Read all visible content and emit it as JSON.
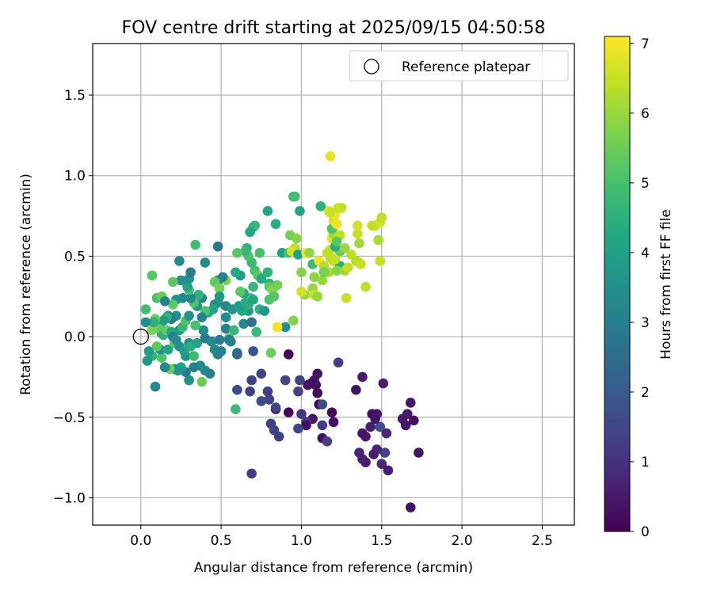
{
  "chart_data": {
    "type": "scatter",
    "title": "FOV centre drift starting at 2025/09/15 04:50:58",
    "xlabel": "Angular distance from reference (arcmin)",
    "ylabel": "Rotation from reference (arcmin)",
    "xlim": [
      -0.3,
      2.7
    ],
    "ylim": [
      -1.17,
      1.82
    ],
    "x_ticks": [
      0.0,
      0.5,
      1.0,
      1.5,
      2.0,
      2.5
    ],
    "x_tick_labels": [
      "0.0",
      "0.5",
      "1.0",
      "1.5",
      "2.0",
      "2.5"
    ],
    "y_ticks": [
      -1.0,
      -0.5,
      0.0,
      0.5,
      1.0,
      1.5
    ],
    "y_tick_labels": [
      "−1.0",
      "−0.5",
      "0.0",
      "0.5",
      "1.0",
      "1.5"
    ],
    "grid": true,
    "legend": {
      "position": "top-right",
      "entries": [
        {
          "label": "Reference platepar",
          "marker": "open-circle"
        }
      ]
    },
    "reference_point": {
      "x": 0.0,
      "y": 0.0,
      "label": "Reference platepar"
    },
    "colorbar": {
      "label": "Hours from first FF file",
      "colormap": "viridis",
      "range": [
        0,
        7.1
      ],
      "ticks": [
        0,
        1,
        2,
        3,
        4,
        5,
        6,
        7
      ],
      "tick_labels": [
        "0",
        "1",
        "2",
        "3",
        "4",
        "5",
        "6",
        "7"
      ]
    },
    "points": [
      [
        1.68,
        -1.06,
        0.3
      ],
      [
        1.73,
        -0.72,
        0.4
      ],
      [
        1.54,
        -0.83,
        0.6
      ],
      [
        1.5,
        -0.79,
        0.8
      ],
      [
        1.4,
        -0.78,
        0.5
      ],
      [
        1.38,
        -0.76,
        0.6
      ],
      [
        1.36,
        -0.72,
        0.8
      ],
      [
        1.45,
        -0.73,
        0.5
      ],
      [
        1.52,
        -0.72,
        1.4
      ],
      [
        1.47,
        -0.7,
        0.7
      ],
      [
        1.4,
        -0.62,
        0.5
      ],
      [
        1.38,
        -0.6,
        0.4
      ],
      [
        1.43,
        -0.56,
        0.6
      ],
      [
        1.49,
        -0.56,
        1.6
      ],
      [
        1.53,
        -0.6,
        0.8
      ],
      [
        1.47,
        -0.48,
        0.5
      ],
      [
        1.44,
        -0.48,
        0.3
      ],
      [
        1.46,
        -0.51,
        0.4
      ],
      [
        1.65,
        -0.55,
        0.4
      ],
      [
        1.66,
        -0.48,
        0.5
      ],
      [
        1.68,
        -0.41,
        0.4
      ],
      [
        1.7,
        -0.52,
        0.3
      ],
      [
        1.63,
        -0.51,
        0.5
      ],
      [
        1.51,
        -0.29,
        0.6
      ],
      [
        1.38,
        -0.25,
        0.5
      ],
      [
        1.34,
        -0.33,
        0.3
      ],
      [
        1.23,
        -0.16,
        1.3
      ],
      [
        1.2,
        -0.53,
        0.3
      ],
      [
        1.19,
        -0.47,
        0.2
      ],
      [
        1.13,
        -0.63,
        0.3
      ],
      [
        1.16,
        -0.65,
        1.3
      ],
      [
        1.11,
        -0.42,
        0.1
      ],
      [
        1.1,
        -0.35,
        0.2
      ],
      [
        1.09,
        -0.3,
        0.3
      ],
      [
        1.08,
        -0.27,
        0.5
      ],
      [
        1.1,
        -0.23,
        0.4
      ],
      [
        1.06,
        -0.29,
        0.2
      ],
      [
        1.04,
        -0.3,
        0.3
      ],
      [
        1.07,
        -0.51,
        0.4
      ],
      [
        1.03,
        -0.53,
        1.2
      ],
      [
        1.0,
        -0.48,
        1.2
      ],
      [
        1.03,
        -0.55,
        0.2
      ],
      [
        1.13,
        -0.55,
        1.2
      ],
      [
        1.13,
        -0.42,
        1.6
      ],
      [
        0.98,
        -0.57,
        1.5
      ],
      [
        0.98,
        -0.34,
        1.4
      ],
      [
        0.99,
        -0.27,
        1.4
      ],
      [
        0.9,
        -0.27,
        1.5
      ],
      [
        0.92,
        -0.11,
        0.1
      ],
      [
        0.92,
        -0.47,
        0.1
      ],
      [
        0.84,
        -0.45,
        0.2
      ],
      [
        0.84,
        -0.44,
        1.5
      ],
      [
        0.81,
        -0.54,
        1.4
      ],
      [
        0.83,
        -0.58,
        1.5
      ],
      [
        0.86,
        -0.62,
        1.3
      ],
      [
        0.8,
        -0.39,
        1.4
      ],
      [
        0.79,
        -0.34,
        1.3
      ],
      [
        0.75,
        -0.4,
        1.6
      ],
      [
        0.75,
        -0.23,
        1.5
      ],
      [
        0.69,
        -0.27,
        1.4
      ],
      [
        0.7,
        -0.09,
        1.8
      ],
      [
        0.68,
        -0.34,
        1.3
      ],
      [
        0.6,
        -0.33,
        1.6
      ],
      [
        0.69,
        -0.85,
        1.3
      ],
      [
        0.59,
        -0.45,
        4.8
      ],
      [
        0.81,
        -0.1,
        5.5
      ],
      [
        0.6,
        -0.1,
        3.0
      ],
      [
        0.6,
        -0.11,
        2.4
      ],
      [
        0.56,
        -0.03,
        3.1
      ],
      [
        0.55,
        -0.01,
        5.1
      ],
      [
        0.5,
        -0.09,
        3.2
      ],
      [
        0.48,
        -0.11,
        3.0
      ],
      [
        0.46,
        -0.08,
        3.2
      ],
      [
        0.43,
        -0.23,
        3.1
      ],
      [
        0.4,
        -0.21,
        3.2
      ],
      [
        0.38,
        -0.28,
        5.5
      ],
      [
        0.37,
        -0.18,
        3.4
      ],
      [
        0.33,
        -0.19,
        3.0
      ],
      [
        0.3,
        -0.27,
        3.5
      ],
      [
        0.28,
        -0.22,
        3.0
      ],
      [
        0.28,
        -0.12,
        3.6
      ],
      [
        0.25,
        -0.19,
        4.0
      ],
      [
        0.23,
        -0.21,
        3.8
      ],
      [
        0.21,
        -0.2,
        3.6
      ],
      [
        0.18,
        -0.2,
        5.5
      ],
      [
        0.15,
        -0.19,
        3.3
      ],
      [
        0.13,
        -0.13,
        5.1
      ],
      [
        0.12,
        -0.08,
        3.5
      ],
      [
        0.09,
        -0.31,
        3.3
      ],
      [
        0.07,
        -0.12,
        4.6
      ],
      [
        0.04,
        -0.15,
        3.8
      ],
      [
        0.05,
        -0.09,
        3.9
      ],
      [
        0.1,
        -0.06,
        5.3
      ],
      [
        0.17,
        -0.08,
        4.2
      ],
      [
        0.21,
        -0.04,
        5.2
      ],
      [
        0.24,
        -0.06,
        3.6
      ],
      [
        0.27,
        -0.09,
        4.0
      ],
      [
        0.3,
        -0.04,
        3.4
      ],
      [
        0.31,
        -0.06,
        4.4
      ],
      [
        0.33,
        -0.12,
        4.8
      ],
      [
        0.35,
        -0.04,
        4.1
      ],
      [
        0.39,
        0.04,
        3.5
      ],
      [
        0.4,
        -0.01,
        3.0
      ],
      [
        0.44,
        -0.03,
        3.3
      ],
      [
        0.49,
        -0.02,
        3.0
      ],
      [
        0.53,
        0.05,
        3.1
      ],
      [
        0.55,
        -0.02,
        3.1
      ],
      [
        0.58,
        0.04,
        4.7
      ],
      [
        0.64,
        0.08,
        3.3
      ],
      [
        0.69,
        0.09,
        2.6
      ],
      [
        0.72,
        0.03,
        4.8
      ],
      [
        0.67,
        0.16,
        3.8
      ],
      [
        0.63,
        0.16,
        4.3
      ],
      [
        0.67,
        0.2,
        4.6
      ],
      [
        0.68,
        0.24,
        4.9
      ],
      [
        0.64,
        0.27,
        4.2
      ],
      [
        0.7,
        0.31,
        4.7
      ],
      [
        0.62,
        0.38,
        3.8
      ],
      [
        0.59,
        0.4,
        4.3
      ],
      [
        0.71,
        0.41,
        5.0
      ],
      [
        0.73,
        0.38,
        5.3
      ],
      [
        0.75,
        0.36,
        4.3
      ],
      [
        0.69,
        0.46,
        4.7
      ],
      [
        0.66,
        0.55,
        4.5
      ],
      [
        0.67,
        0.5,
        5.1
      ],
      [
        0.74,
        0.52,
        5.0
      ],
      [
        0.79,
        0.4,
        4.5
      ],
      [
        0.8,
        0.33,
        4.6
      ],
      [
        0.8,
        0.31,
        5.3
      ],
      [
        0.82,
        0.29,
        5.8
      ],
      [
        0.83,
        0.25,
        5.2
      ],
      [
        0.85,
        0.32,
        5.6
      ],
      [
        0.88,
        0.52,
        4.0
      ],
      [
        0.92,
        0.52,
        5.0
      ],
      [
        0.93,
        0.63,
        5.6
      ],
      [
        0.97,
        0.61,
        5.8
      ],
      [
        0.96,
        0.55,
        6.4
      ],
      [
        0.94,
        0.53,
        6.6
      ],
      [
        0.98,
        0.51,
        4.1
      ],
      [
        1.0,
        0.4,
        5.8
      ],
      [
        1.02,
        0.26,
        6.0
      ],
      [
        1.03,
        0.52,
        7.0
      ],
      [
        1.05,
        0.52,
        5.9
      ],
      [
        1.07,
        0.45,
        4.8
      ],
      [
        1.08,
        0.37,
        5.9
      ],
      [
        1.07,
        0.3,
        6.0
      ],
      [
        1.08,
        0.26,
        6.5
      ],
      [
        1.1,
        0.25,
        6.0
      ],
      [
        1.13,
        0.35,
        6.0
      ],
      [
        1.11,
        0.47,
        7.0
      ],
      [
        1.14,
        0.44,
        6.3
      ],
      [
        1.17,
        0.4,
        6.2
      ],
      [
        1.18,
        0.49,
        6.3
      ],
      [
        1.2,
        0.47,
        6.4
      ],
      [
        1.24,
        0.44,
        4.4
      ],
      [
        1.24,
        0.53,
        5.4
      ],
      [
        1.22,
        0.41,
        5.8
      ],
      [
        1.21,
        0.48,
        6.5
      ],
      [
        1.19,
        0.61,
        6.8
      ],
      [
        1.2,
        0.64,
        6.1
      ],
      [
        1.19,
        0.67,
        5.1
      ],
      [
        1.2,
        0.72,
        6.7
      ],
      [
        1.21,
        0.76,
        6.9
      ],
      [
        1.17,
        0.78,
        6.8
      ],
      [
        1.22,
        0.7,
        6.9
      ],
      [
        1.25,
        0.8,
        6.4
      ],
      [
        1.23,
        0.8,
        6.5
      ],
      [
        1.24,
        0.63,
        6.4
      ],
      [
        1.18,
        0.54,
        6.4
      ],
      [
        1.27,
        0.55,
        6.0
      ],
      [
        1.27,
        0.41,
        6.1
      ],
      [
        1.31,
        0.51,
        6.4
      ],
      [
        1.29,
        0.43,
        6.5
      ],
      [
        1.34,
        0.47,
        6.3
      ],
      [
        1.36,
        0.46,
        6.3
      ],
      [
        1.36,
        0.58,
        6.1
      ],
      [
        1.35,
        0.64,
        6.5
      ],
      [
        1.35,
        0.69,
        6.6
      ],
      [
        1.37,
        0.45,
        6.5
      ],
      [
        1.4,
        0.31,
        6.4
      ],
      [
        1.44,
        0.69,
        6.5
      ],
      [
        1.46,
        0.69,
        6.4
      ],
      [
        1.48,
        0.6,
        6.2
      ],
      [
        1.49,
        0.71,
        6.6
      ],
      [
        1.5,
        0.74,
        6.4
      ],
      [
        1.49,
        0.47,
        6.5
      ],
      [
        1.28,
        0.24,
        6.5
      ],
      [
        1.18,
        1.12,
        6.8
      ],
      [
        1.12,
        0.81,
        4.5
      ],
      [
        1.18,
        0.77,
        6.5
      ],
      [
        1.21,
        0.56,
        4.3
      ],
      [
        1.22,
        0.59,
        5.2
      ],
      [
        1.14,
        0.4,
        5.6
      ],
      [
        1.16,
        0.52,
        6.4
      ],
      [
        1.0,
        0.28,
        6.6
      ],
      [
        0.99,
        0.78,
        4.1
      ],
      [
        0.95,
        0.87,
        4.8
      ],
      [
        0.96,
        0.87,
        4.9
      ],
      [
        0.95,
        0.1,
        5.8
      ],
      [
        0.9,
        0.06,
        3.5
      ],
      [
        0.85,
        0.06,
        7.0
      ],
      [
        0.84,
        0.7,
        4.4
      ],
      [
        0.79,
        0.78,
        4.2
      ],
      [
        0.7,
        0.68,
        4.5
      ],
      [
        0.71,
        0.69,
        4.7
      ],
      [
        0.68,
        0.65,
        4.2
      ],
      [
        0.65,
        0.53,
        4.7
      ],
      [
        0.6,
        0.52,
        5.2
      ],
      [
        0.62,
        0.28,
        5.2
      ],
      [
        0.53,
        0.35,
        5.7
      ],
      [
        0.51,
        0.37,
        3.1
      ],
      [
        0.48,
        0.35,
        3.1
      ],
      [
        0.46,
        0.34,
        5.4
      ],
      [
        0.49,
        0.3,
        5.6
      ],
      [
        0.49,
        0.25,
        3.8
      ],
      [
        0.48,
        0.21,
        3.6
      ],
      [
        0.53,
        0.19,
        3.3
      ],
      [
        0.46,
        0.2,
        3.5
      ],
      [
        0.45,
        0.17,
        4.2
      ],
      [
        0.42,
        0.15,
        4.1
      ],
      [
        0.4,
        0.16,
        5.1
      ],
      [
        0.38,
        0.24,
        3.2
      ],
      [
        0.36,
        0.26,
        4.6
      ],
      [
        0.35,
        0.19,
        3.6
      ],
      [
        0.33,
        0.21,
        5.1
      ],
      [
        0.31,
        0.24,
        3.2
      ],
      [
        0.3,
        0.29,
        4.9
      ],
      [
        0.29,
        0.31,
        4.1
      ],
      [
        0.3,
        0.36,
        3.5
      ],
      [
        0.31,
        0.4,
        3.0
      ],
      [
        0.25,
        0.35,
        3.4
      ],
      [
        0.24,
        0.47,
        3.3
      ],
      [
        0.2,
        0.34,
        5.3
      ],
      [
        0.26,
        0.24,
        3.3
      ],
      [
        0.22,
        0.23,
        3.6
      ],
      [
        0.2,
        0.2,
        5.3
      ],
      [
        0.22,
        0.13,
        3.4
      ],
      [
        0.19,
        0.11,
        3.0
      ],
      [
        0.17,
        0.13,
        3.3
      ],
      [
        0.16,
        0.12,
        4.6
      ],
      [
        0.14,
        0.1,
        3.8
      ],
      [
        0.12,
        0.06,
        4.0
      ],
      [
        0.13,
        0.02,
        3.8
      ],
      [
        0.11,
        0.05,
        5.3
      ],
      [
        0.09,
        0.11,
        5.5
      ],
      [
        0.07,
        0.04,
        5.7
      ],
      [
        0.08,
        0.09,
        4.5
      ],
      [
        0.1,
        0.24,
        5.0
      ],
      [
        0.13,
        0.25,
        5.5
      ],
      [
        0.15,
        0.22,
        3.1
      ],
      [
        0.07,
        0.38,
        5.2
      ],
      [
        0.03,
        0.17,
        4.9
      ],
      [
        0.03,
        0.09,
        3.4
      ],
      [
        0.14,
        0.01,
        4.5
      ],
      [
        0.16,
        0.04,
        5.4
      ],
      [
        0.19,
        0.03,
        4.3
      ],
      [
        0.2,
        0.0,
        3.0
      ],
      [
        0.22,
        -0.02,
        3.4
      ],
      [
        0.24,
        0.04,
        3.9
      ],
      [
        0.26,
        0.06,
        4.7
      ],
      [
        0.28,
        0.1,
        5.1
      ],
      [
        0.3,
        0.13,
        3.6
      ],
      [
        0.34,
        0.07,
        5.0
      ],
      [
        0.38,
        0.12,
        3.1
      ],
      [
        0.4,
        0.46,
        3.4
      ],
      [
        0.34,
        0.57,
        4.9
      ],
      [
        0.48,
        0.56,
        2.8
      ],
      [
        0.53,
        0.12,
        3.4
      ],
      [
        0.57,
        0.17,
        3.7
      ],
      [
        0.61,
        0.19,
        3.9
      ],
      [
        0.65,
        0.21,
        4.4
      ],
      [
        0.7,
        0.23,
        4.2
      ],
      [
        0.74,
        0.17,
        4.5
      ],
      [
        0.77,
        0.16,
        3.7
      ],
      [
        0.8,
        0.23,
        5.1
      ]
    ]
  }
}
